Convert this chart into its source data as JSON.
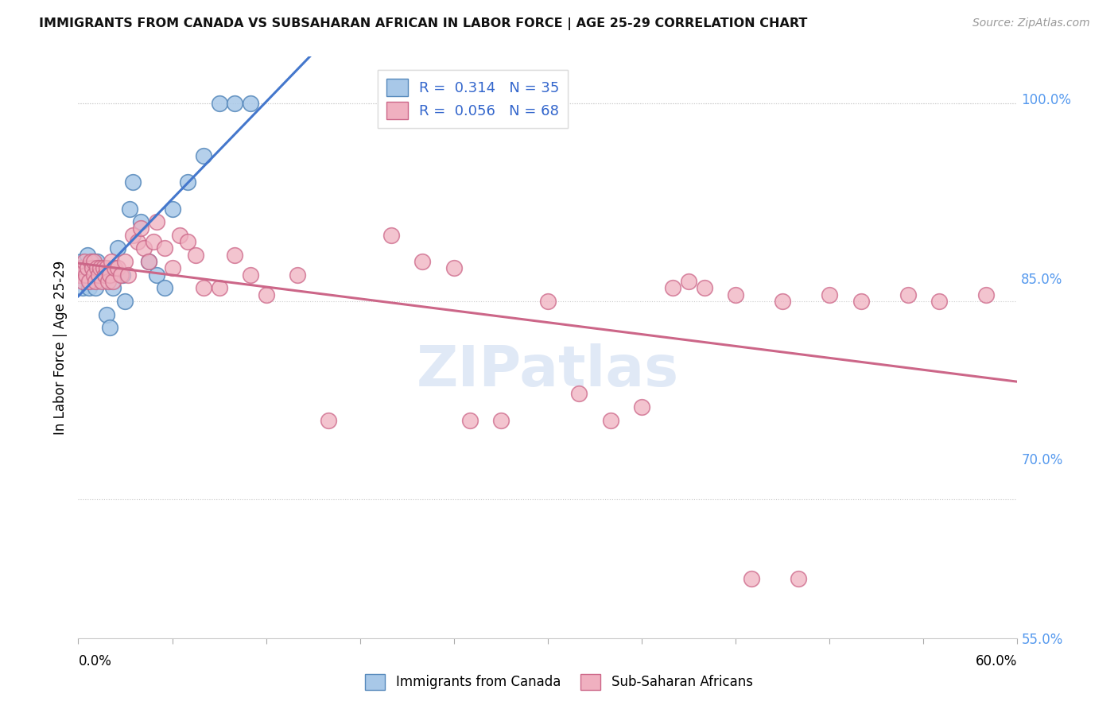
{
  "title": "IMMIGRANTS FROM CANADA VS SUBSAHARAN AFRICAN IN LABOR FORCE | AGE 25-29 CORRELATION CHART",
  "source": "Source: ZipAtlas.com",
  "ylabel": "In Labor Force | Age 25-29",
  "legend_r_canada": "0.314",
  "legend_n_canada": "35",
  "legend_r_subsaharan": "0.056",
  "legend_n_subsaharan": "68",
  "canada_color": "#a8c8e8",
  "canada_edge": "#5588bb",
  "subsaharan_color": "#f0b0c0",
  "subsaharan_edge": "#cc6688",
  "line_canada_color": "#4477cc",
  "line_subsaharan_color": "#cc6688",
  "xmin": 0.0,
  "xmax": 0.6,
  "ymin": 0.595,
  "ymax": 1.035,
  "ytick_positions": [
    0.55,
    0.7,
    0.85,
    1.0
  ],
  "ytick_labels": [
    "55.0%",
    "70.0%",
    "85.0%",
    "100.0%"
  ],
  "canada_x": [
    0.001,
    0.002,
    0.003,
    0.004,
    0.005,
    0.006,
    0.006,
    0.007,
    0.007,
    0.008,
    0.009,
    0.01,
    0.011,
    0.012,
    0.013,
    0.014,
    0.015,
    0.018,
    0.02,
    0.022,
    0.025,
    0.028,
    0.03,
    0.033,
    0.035,
    0.04,
    0.045,
    0.05,
    0.055,
    0.06,
    0.07,
    0.08,
    0.09,
    0.1,
    0.11
  ],
  "canada_y": [
    0.87,
    0.88,
    0.86,
    0.875,
    0.87,
    0.875,
    0.885,
    0.86,
    0.87,
    0.865,
    0.88,
    0.87,
    0.86,
    0.88,
    0.875,
    0.875,
    0.87,
    0.84,
    0.83,
    0.86,
    0.89,
    0.87,
    0.85,
    0.92,
    0.94,
    0.91,
    0.88,
    0.87,
    0.86,
    0.92,
    0.94,
    0.96,
    1.0,
    1.0,
    1.0
  ],
  "subsaharan_x": [
    0.001,
    0.002,
    0.003,
    0.004,
    0.005,
    0.006,
    0.007,
    0.008,
    0.009,
    0.01,
    0.01,
    0.011,
    0.012,
    0.013,
    0.014,
    0.015,
    0.016,
    0.017,
    0.018,
    0.019,
    0.02,
    0.021,
    0.022,
    0.023,
    0.025,
    0.027,
    0.03,
    0.032,
    0.035,
    0.038,
    0.04,
    0.042,
    0.045,
    0.048,
    0.05,
    0.055,
    0.06,
    0.065,
    0.07,
    0.075,
    0.08,
    0.09,
    0.1,
    0.11,
    0.12,
    0.14,
    0.16,
    0.2,
    0.22,
    0.24,
    0.25,
    0.27,
    0.3,
    0.32,
    0.34,
    0.36,
    0.38,
    0.39,
    0.4,
    0.42,
    0.43,
    0.45,
    0.46,
    0.48,
    0.5,
    0.53,
    0.55,
    0.58
  ],
  "subsaharan_y": [
    0.87,
    0.875,
    0.865,
    0.88,
    0.87,
    0.875,
    0.865,
    0.88,
    0.875,
    0.87,
    0.88,
    0.865,
    0.875,
    0.87,
    0.875,
    0.865,
    0.875,
    0.87,
    0.875,
    0.865,
    0.87,
    0.88,
    0.865,
    0.875,
    0.875,
    0.87,
    0.88,
    0.87,
    0.9,
    0.895,
    0.905,
    0.89,
    0.88,
    0.895,
    0.91,
    0.89,
    0.875,
    0.9,
    0.895,
    0.885,
    0.86,
    0.86,
    0.885,
    0.87,
    0.855,
    0.87,
    0.76,
    0.9,
    0.88,
    0.875,
    0.76,
    0.76,
    0.85,
    0.78,
    0.76,
    0.77,
    0.86,
    0.865,
    0.86,
    0.855,
    0.64,
    0.85,
    0.64,
    0.855,
    0.85,
    0.855,
    0.85,
    0.855
  ],
  "watermark_text": "ZIPatlas"
}
